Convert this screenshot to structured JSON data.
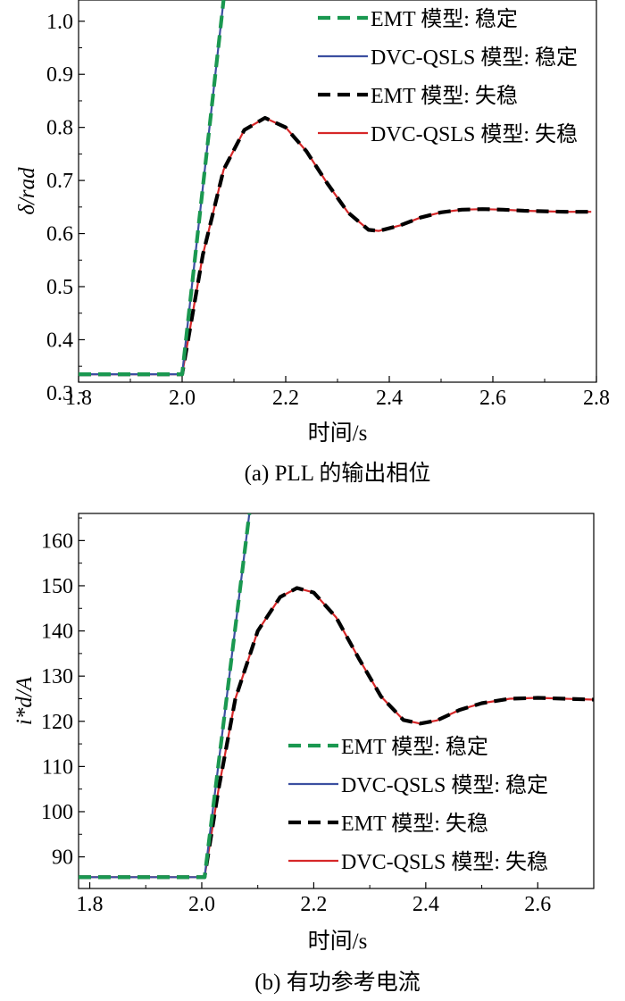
{
  "chart_data": [
    {
      "type": "line",
      "caption": "(a)  PLL 的输出相位",
      "xlabel": "时间/s",
      "ylabel": "δ/rad",
      "xlim": [
        1.8,
        2.8
      ],
      "ylim": [
        0.32,
        1.04
      ],
      "xticks": [
        1.8,
        2.0,
        2.2,
        2.4,
        2.6,
        2.8
      ],
      "xtick_labels": [
        "1.8",
        "2.0",
        "2.2",
        "2.4",
        "2.6",
        "2.8"
      ],
      "yticks": [
        0.3,
        0.4,
        0.5,
        0.6,
        0.7,
        0.8,
        0.9,
        1.0
      ],
      "ytick_labels": [
        "0.3",
        "0.4",
        "0.5",
        "0.6",
        "0.7",
        "0.8",
        "0.9",
        "1.0"
      ],
      "legend_position": "top-right",
      "series": [
        {
          "name": "EMT 模型: 稳定",
          "color": "#1a9850",
          "dash": "dashed",
          "x": [
            1.8,
            2.0,
            2.08
          ],
          "y": [
            0.335,
            0.335,
            1.04
          ]
        },
        {
          "name": "DVC-QSLS 模型: 稳定",
          "color": "#3b4fa0",
          "dash": "solid",
          "x": [
            1.8,
            2.0,
            2.08
          ],
          "y": [
            0.335,
            0.335,
            1.04
          ]
        },
        {
          "name": "EMT 模型: 失稳",
          "color": "#000000",
          "dash": "dashed",
          "x": [
            1.8,
            2.0,
            2.04,
            2.08,
            2.12,
            2.16,
            2.2,
            2.24,
            2.28,
            2.32,
            2.36,
            2.38,
            2.42,
            2.46,
            2.5,
            2.54,
            2.58,
            2.62,
            2.66,
            2.7,
            2.74,
            2.79
          ],
          "y": [
            0.335,
            0.335,
            0.56,
            0.72,
            0.795,
            0.818,
            0.8,
            0.755,
            0.695,
            0.64,
            0.607,
            0.605,
            0.615,
            0.63,
            0.64,
            0.645,
            0.646,
            0.645,
            0.643,
            0.642,
            0.641,
            0.641
          ]
        },
        {
          "name": "DVC-QSLS 模型: 失稳",
          "color": "#d62728",
          "dash": "solid",
          "x": [
            1.8,
            2.0,
            2.04,
            2.08,
            2.12,
            2.16,
            2.2,
            2.24,
            2.28,
            2.32,
            2.36,
            2.38,
            2.42,
            2.46,
            2.5,
            2.54,
            2.58,
            2.62,
            2.66,
            2.7,
            2.74,
            2.79
          ],
          "y": [
            0.335,
            0.335,
            0.56,
            0.72,
            0.795,
            0.818,
            0.8,
            0.755,
            0.695,
            0.64,
            0.607,
            0.605,
            0.615,
            0.63,
            0.64,
            0.645,
            0.646,
            0.645,
            0.643,
            0.642,
            0.641,
            0.641
          ]
        }
      ]
    },
    {
      "type": "line",
      "caption": "(b)  有功参考电流",
      "xlabel": "时间/s",
      "ylabel": "i*d/A",
      "xlim": [
        1.78,
        2.7
      ],
      "ylim": [
        83,
        166
      ],
      "xticks": [
        1.8,
        2.0,
        2.2,
        2.4,
        2.6
      ],
      "xtick_labels": [
        "1.8",
        "2.0",
        "2.2",
        "2.4",
        "2.6"
      ],
      "yticks": [
        90,
        100,
        110,
        120,
        130,
        140,
        150,
        160
      ],
      "ytick_labels": [
        "90",
        "100",
        "110",
        "120",
        "130",
        "140",
        "150",
        "160"
      ],
      "legend_position": "bottom-right",
      "series": [
        {
          "name": "EMT 模型: 稳定",
          "color": "#1a9850",
          "dash": "dashed",
          "x": [
            1.78,
            2.005,
            2.085
          ],
          "y": [
            85.5,
            85.5,
            166
          ]
        },
        {
          "name": "DVC-QSLS 模型: 稳定",
          "color": "#3b4fa0",
          "dash": "solid",
          "x": [
            1.78,
            2.005,
            2.085
          ],
          "y": [
            85.5,
            85.5,
            166
          ]
        },
        {
          "name": "EMT 模型: 失稳",
          "color": "#000000",
          "dash": "dashed",
          "x": [
            1.78,
            2.005,
            2.03,
            2.06,
            2.1,
            2.14,
            2.17,
            2.2,
            2.24,
            2.28,
            2.32,
            2.36,
            2.39,
            2.42,
            2.46,
            2.5,
            2.55,
            2.6,
            2.65,
            2.7
          ],
          "y": [
            85.5,
            85.5,
            105,
            125,
            140,
            147.5,
            149.5,
            148.5,
            143,
            134,
            125.5,
            120.3,
            119.5,
            120.2,
            122.5,
            124,
            125,
            125.2,
            125,
            124.8
          ]
        },
        {
          "name": "DVC-QSLS 模型: 失稳",
          "color": "#d62728",
          "dash": "solid",
          "x": [
            1.78,
            2.005,
            2.03,
            2.06,
            2.1,
            2.14,
            2.17,
            2.2,
            2.24,
            2.28,
            2.32,
            2.36,
            2.39,
            2.42,
            2.46,
            2.5,
            2.55,
            2.6,
            2.65,
            2.7
          ],
          "y": [
            85.5,
            85.5,
            105,
            125,
            140,
            147.5,
            149.5,
            148.5,
            143,
            134,
            125.5,
            120.3,
            119.5,
            120.2,
            122.5,
            124,
            125,
            125.2,
            125,
            124.8
          ]
        }
      ]
    }
  ]
}
